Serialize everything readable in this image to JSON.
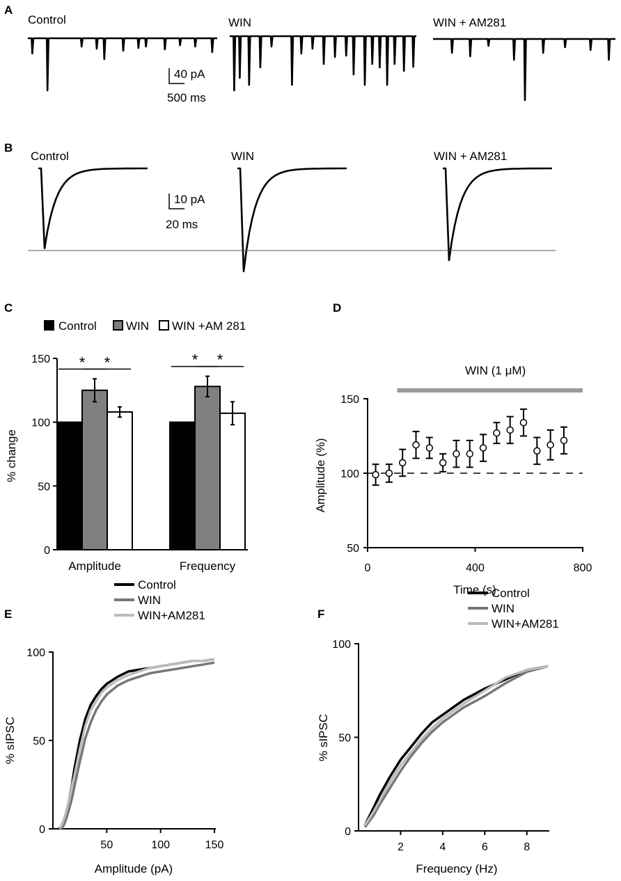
{
  "panels": {
    "A": "A",
    "B": "B",
    "C": "C",
    "D": "D",
    "E": "E",
    "F": "F"
  },
  "colors": {
    "control": "#000000",
    "win": "#777777",
    "win_am281": "#bbbbbb",
    "bar_win": "#808080",
    "bar_am281": "#ffffff",
    "win_bar_line": "#999999"
  },
  "panel_a": {
    "titles": [
      "Control",
      "WIN",
      "WIN + AM281"
    ],
    "scale_y": "40 pA",
    "scale_x": "500 ms",
    "events": [
      [
        [
          0.02,
          22
        ],
        [
          0.1,
          75
        ],
        [
          0.28,
          12
        ],
        [
          0.36,
          15
        ],
        [
          0.4,
          30
        ],
        [
          0.5,
          18
        ],
        [
          0.58,
          14
        ],
        [
          0.62,
          12
        ],
        [
          0.72,
          16
        ],
        [
          0.8,
          10
        ],
        [
          0.88,
          12
        ],
        [
          0.97,
          20
        ]
      ],
      [
        [
          0.02,
          78
        ],
        [
          0.05,
          60
        ],
        [
          0.1,
          70
        ],
        [
          0.16,
          45
        ],
        [
          0.22,
          15
        ],
        [
          0.33,
          70
        ],
        [
          0.38,
          25
        ],
        [
          0.44,
          18
        ],
        [
          0.5,
          40
        ],
        [
          0.56,
          30
        ],
        [
          0.62,
          28
        ],
        [
          0.66,
          55
        ],
        [
          0.72,
          70
        ],
        [
          0.76,
          40
        ],
        [
          0.8,
          45
        ],
        [
          0.84,
          70
        ],
        [
          0.88,
          40
        ],
        [
          0.93,
          50
        ],
        [
          0.98,
          44
        ]
      ],
      [
        [
          0.1,
          20
        ],
        [
          0.2,
          25
        ],
        [
          0.3,
          10
        ],
        [
          0.44,
          30
        ],
        [
          0.5,
          88
        ],
        [
          0.6,
          20
        ],
        [
          0.72,
          12
        ],
        [
          0.86,
          16
        ],
        [
          0.96,
          30
        ]
      ]
    ]
  },
  "panel_b": {
    "titles": [
      "Control",
      "WIN",
      "WIN + AM281"
    ],
    "scale_y": "10 pA",
    "scale_x": "20 ms",
    "peaks": [
      115,
      148,
      132
    ]
  },
  "chart_data": [
    {
      "panel": "C",
      "type": "bar",
      "legend": [
        "Control",
        "WIN",
        "WIN +AM 281"
      ],
      "categories": [
        "Amplitude",
        "Frequency"
      ],
      "series": [
        {
          "name": "Control",
          "values": [
            100,
            100
          ],
          "errors": [
            0,
            0
          ]
        },
        {
          "name": "WIN",
          "values": [
            125,
            128
          ],
          "errors": [
            9,
            8
          ]
        },
        {
          "name": "WIN +AM 281",
          "values": [
            108,
            107
          ],
          "errors": [
            4,
            9
          ]
        }
      ],
      "significance": [
        {
          "category": "Amplitude",
          "pair": [
            "Control",
            "WIN"
          ],
          "mark": "*"
        },
        {
          "category": "Amplitude",
          "pair": [
            "WIN",
            "WIN +AM 281"
          ],
          "mark": "*"
        },
        {
          "category": "Frequency",
          "pair": [
            "Control",
            "WIN"
          ],
          "mark": "*"
        },
        {
          "category": "Frequency",
          "pair": [
            "WIN",
            "WIN +AM 281"
          ],
          "mark": "*"
        }
      ],
      "ylabel": "% change",
      "ylim": [
        0,
        150
      ],
      "yticks": [
        0,
        50,
        100,
        150
      ]
    },
    {
      "panel": "D",
      "type": "scatter",
      "annotation": "WIN (1 μM)",
      "annotation_range": [
        110,
        800
      ],
      "x": [
        30,
        80,
        130,
        180,
        230,
        280,
        330,
        380,
        430,
        480,
        530,
        580,
        630,
        680,
        730
      ],
      "values": [
        99,
        100,
        107,
        119,
        117,
        107,
        113,
        113,
        117,
        127,
        129,
        134,
        115,
        119,
        122
      ],
      "errors": [
        7,
        6,
        9,
        9,
        7,
        6,
        9,
        9,
        9,
        7,
        9,
        9,
        9,
        10,
        9
      ],
      "baseline": 100,
      "xlabel": "Time (s)",
      "ylabel": "Amplitude (%)",
      "xlim": [
        0,
        800
      ],
      "ylim": [
        50,
        150
      ],
      "xticks": [
        0,
        400,
        800
      ],
      "yticks": [
        50,
        100,
        150
      ]
    },
    {
      "panel": "E",
      "type": "line",
      "xlabel": "Amplitude (pA)",
      "ylabel": "% sIPSC",
      "xlim": [
        0,
        150
      ],
      "ylim": [
        0,
        100
      ],
      "xticks": [
        50,
        100,
        150
      ],
      "yticks": [
        0,
        50,
        100
      ],
      "series": [
        {
          "name": "Control",
          "x": [
            5,
            8,
            10,
            12,
            15,
            18,
            20,
            25,
            30,
            35,
            40,
            45,
            50,
            60,
            70,
            80,
            90,
            100,
            110,
            120,
            130,
            140,
            150
          ],
          "values": [
            0,
            1,
            4,
            8,
            16,
            26,
            34,
            50,
            62,
            70,
            75,
            79,
            82,
            86,
            89,
            90,
            91,
            92,
            93,
            94,
            95,
            95,
            96
          ]
        },
        {
          "name": "WIN",
          "x": [
            8,
            10,
            12,
            15,
            18,
            20,
            25,
            30,
            35,
            40,
            45,
            50,
            60,
            70,
            80,
            90,
            100,
            110,
            120,
            130,
            140,
            150
          ],
          "values": [
            0,
            2,
            5,
            11,
            18,
            24,
            38,
            51,
            60,
            67,
            72,
            76,
            81,
            84,
            86,
            88,
            89,
            90,
            91,
            92,
            93,
            94
          ]
        },
        {
          "name": "WIN+AM281",
          "x": [
            6,
            8,
            10,
            12,
            15,
            18,
            20,
            25,
            30,
            35,
            40,
            45,
            50,
            60,
            70,
            80,
            90,
            100,
            110,
            120,
            130,
            140,
            150
          ],
          "values": [
            0,
            2,
            5,
            9,
            16,
            25,
            30,
            45,
            58,
            67,
            72,
            77,
            80,
            84,
            87,
            89,
            91,
            92,
            93,
            94,
            95,
            95,
            96
          ]
        }
      ]
    },
    {
      "panel": "F",
      "type": "line",
      "xlabel": "Frequency (Hz)",
      "ylabel": "% sIPSC",
      "xlim": [
        0,
        9
      ],
      "ylim": [
        0,
        100
      ],
      "xticks": [
        2,
        4,
        6,
        8
      ],
      "yticks": [
        0,
        50,
        100
      ],
      "series": [
        {
          "name": "Control",
          "x": [
            0.3,
            0.7,
            1,
            1.5,
            2,
            2.5,
            3,
            3.5,
            4,
            5,
            6,
            7,
            8,
            9
          ],
          "values": [
            3,
            12,
            19,
            29,
            38,
            45,
            52,
            58,
            62,
            70,
            76,
            81,
            86,
            88
          ]
        },
        {
          "name": "WIN",
          "x": [
            0.3,
            0.7,
            1,
            1.5,
            2,
            2.5,
            3,
            3.5,
            4,
            5,
            6,
            7,
            8,
            9
          ],
          "values": [
            2,
            8,
            14,
            23,
            32,
            40,
            47,
            53,
            58,
            66,
            72,
            79,
            85,
            88
          ]
        },
        {
          "name": "WIN+AM281",
          "x": [
            0.3,
            0.7,
            1,
            1.5,
            2,
            2.5,
            3,
            3.5,
            4,
            5,
            6,
            7,
            8,
            9
          ],
          "values": [
            3,
            10,
            16,
            26,
            35,
            42,
            49,
            55,
            60,
            68,
            75,
            82,
            86,
            88
          ]
        }
      ]
    }
  ]
}
